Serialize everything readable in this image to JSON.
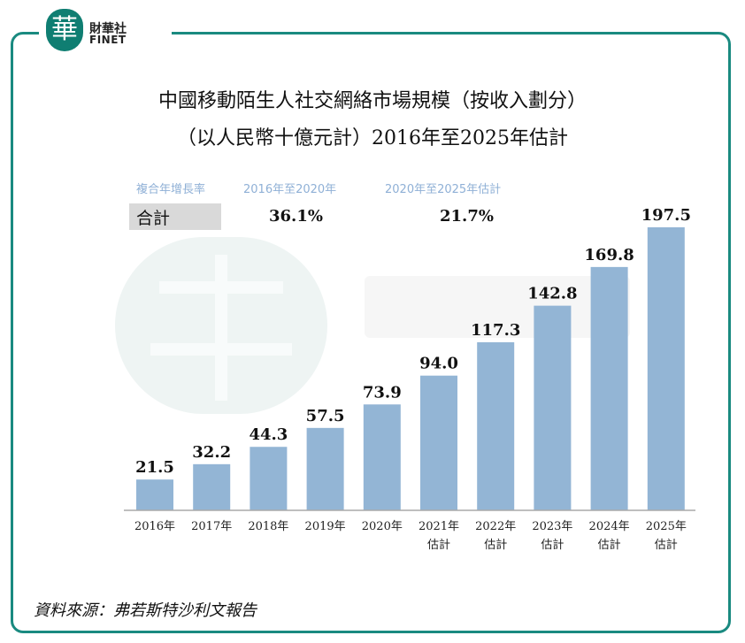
{
  "logo": {
    "name_cn": "財華社",
    "name_en": "FINET",
    "mark": "華"
  },
  "chart_data": {
    "type": "bar",
    "title": "中國移動陌生人社交網絡市場規模（按收入劃分）",
    "subtitle": "（以人民幣十億元計）2016年至2025年估計",
    "categories": [
      [
        "2016年"
      ],
      [
        "2017年"
      ],
      [
        "2018年"
      ],
      [
        "2019年"
      ],
      [
        "2020年"
      ],
      [
        "2021年",
        "估計"
      ],
      [
        "2022年",
        "估計"
      ],
      [
        "2023年",
        "估計"
      ],
      [
        "2024年",
        "估計"
      ],
      [
        "2025年",
        "估計"
      ]
    ],
    "values": [
      21.5,
      32.2,
      44.3,
      57.5,
      73.9,
      94.0,
      117.3,
      142.8,
      169.8,
      197.5
    ],
    "data_labels": [
      "21.5",
      "32.2",
      "44.3",
      "57.5",
      "73.9",
      "94.0",
      "117.3",
      "142.8",
      "169.8",
      "197.5"
    ],
    "ylim": [
      0,
      197.5
    ],
    "grid": false,
    "bar_color": "#93b5d5",
    "cagr": {
      "header": "複合年增長率",
      "period1": "2016年至2020年",
      "period2": "2020年至2025年估計",
      "row_label": "合計",
      "value1": "36.1%",
      "value2": "21.7%"
    }
  },
  "source": "資料來源：弗若斯特沙利文報告",
  "colors": {
    "frame": "#1a8a80",
    "cagr_text": "#8fb0d6"
  }
}
